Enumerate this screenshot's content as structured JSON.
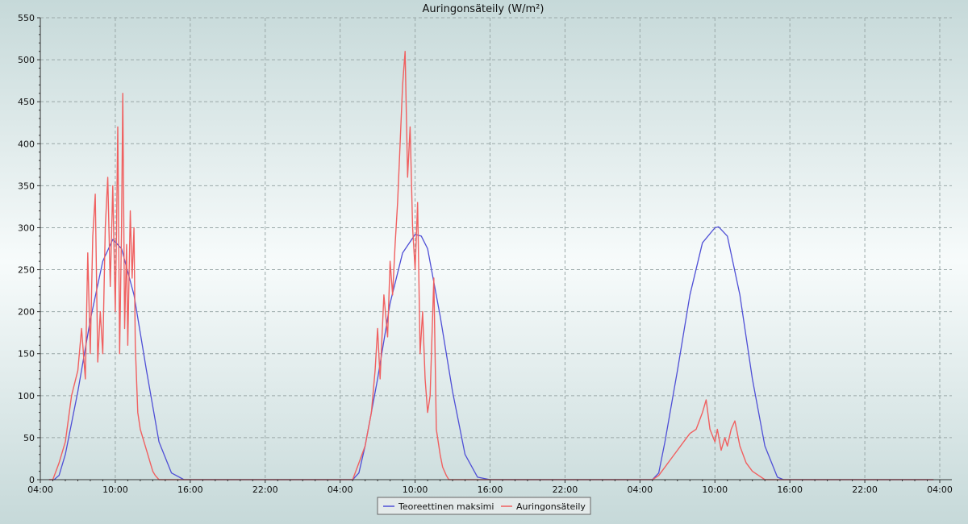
{
  "chart_data": {
    "type": "line",
    "title": "Auringonsäteily (W/m²)",
    "xlabel": "",
    "ylabel": "",
    "ylim": [
      0,
      550
    ],
    "yticks": [
      0,
      50,
      100,
      150,
      200,
      250,
      300,
      350,
      400,
      450,
      500,
      550
    ],
    "xlim_hours": [
      0,
      72
    ],
    "xtick_labels": [
      "04:00",
      "10:00",
      "16:00",
      "22:00",
      "04:00",
      "10:00",
      "16:00",
      "22:00",
      "04:00",
      "10:00",
      "16:00",
      "22:00",
      "04:00"
    ],
    "grid": true,
    "legend_position": "bottom-center",
    "series": [
      {
        "name": "Teoreettinen maksimi",
        "color": "#4f4fd6",
        "hours_since_first_tick": [
          1.1,
          1.5,
          2.0,
          3.0,
          4.0,
          5.0,
          5.8,
          6.5,
          7.5,
          8.5,
          9.5,
          10.5,
          11.5,
          12.0,
          25.0,
          25.5,
          26.0,
          27.0,
          28.0,
          29.0,
          30.0,
          30.5,
          31.0,
          32.0,
          33.0,
          34.0,
          35.0,
          36.0,
          49.0,
          49.5,
          50.0,
          51.0,
          52.0,
          53.0,
          54.0,
          54.3,
          55.0,
          56.0,
          57.0,
          58.0,
          59.0,
          59.5
        ],
        "values": [
          0,
          5,
          30,
          105,
          190,
          260,
          286,
          275,
          220,
          130,
          45,
          8,
          0,
          0,
          0,
          8,
          40,
          120,
          210,
          270,
          292,
          290,
          275,
          195,
          105,
          30,
          3,
          0,
          0,
          8,
          45,
          130,
          220,
          282,
          300,
          301,
          290,
          220,
          120,
          40,
          3,
          0
        ]
      },
      {
        "name": "Auringonsäteily",
        "color": "#f06060",
        "hours_since_first_tick": [
          1.0,
          1.5,
          2.0,
          2.5,
          3.0,
          3.3,
          3.6,
          3.8,
          4.0,
          4.2,
          4.4,
          4.6,
          4.8,
          5.0,
          5.2,
          5.4,
          5.6,
          5.8,
          6.0,
          6.1,
          6.2,
          6.35,
          6.5,
          6.6,
          6.75,
          6.9,
          7.0,
          7.2,
          7.35,
          7.5,
          7.6,
          7.8,
          8.0,
          8.2,
          8.4,
          8.6,
          8.8,
          9.0,
          9.2,
          9.5,
          10.0,
          10.5,
          11.0,
          11.5,
          12.0,
          25.0,
          25.5,
          26.0,
          26.5,
          26.8,
          27.0,
          27.2,
          27.5,
          27.8,
          28.0,
          28.2,
          28.4,
          28.6,
          28.8,
          29.0,
          29.2,
          29.4,
          29.6,
          29.8,
          30.0,
          30.2,
          30.4,
          30.6,
          30.8,
          31.0,
          31.2,
          31.5,
          31.7,
          32.0,
          32.2,
          32.5,
          32.7,
          33.0,
          33.3,
          33.5,
          33.7,
          34.0,
          34.5,
          35.0,
          35.5,
          36.0,
          49.0,
          49.5,
          50.0,
          50.5,
          51.0,
          51.5,
          52.0,
          52.5,
          53.0,
          53.3,
          53.6,
          54.0,
          54.2,
          54.5,
          54.8,
          55.0,
          55.3,
          55.6,
          56.0,
          56.5,
          57.0,
          57.5,
          58.0,
          58.5,
          59.0,
          59.5
        ],
        "values": [
          0,
          20,
          45,
          100,
          130,
          180,
          120,
          270,
          150,
          290,
          340,
          140,
          200,
          150,
          300,
          360,
          230,
          350,
          200,
          300,
          420,
          150,
          300,
          460,
          180,
          280,
          160,
          320,
          240,
          300,
          160,
          80,
          60,
          50,
          40,
          30,
          20,
          10,
          5,
          0,
          0,
          0,
          0,
          0,
          0,
          0,
          20,
          40,
          80,
          130,
          180,
          120,
          220,
          170,
          260,
          220,
          280,
          330,
          400,
          470,
          510,
          360,
          420,
          300,
          250,
          330,
          150,
          200,
          120,
          80,
          100,
          240,
          60,
          30,
          15,
          5,
          0,
          0,
          0,
          0,
          0,
          0,
          0,
          0,
          0,
          0,
          0,
          5,
          15,
          25,
          35,
          45,
          55,
          60,
          80,
          95,
          60,
          45,
          60,
          35,
          50,
          40,
          60,
          70,
          40,
          20,
          10,
          5,
          0,
          0,
          0,
          0
        ]
      }
    ]
  }
}
